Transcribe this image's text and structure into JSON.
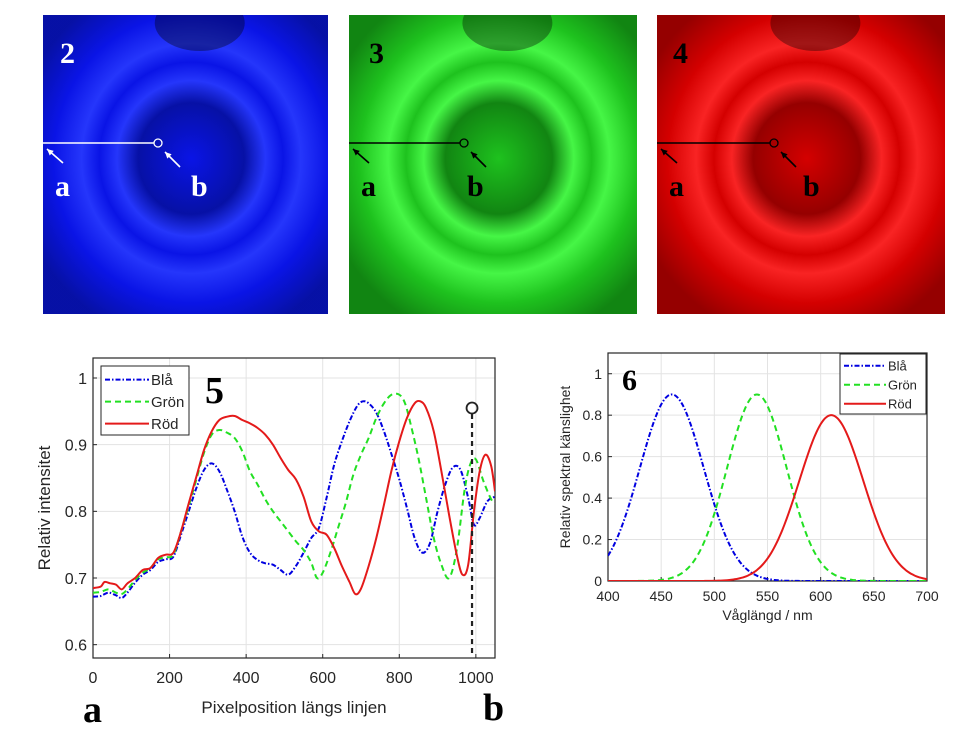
{
  "images": [
    {
      "label": "2",
      "channel": "blue",
      "color": "#0a14e6",
      "text_color": "#ffffff",
      "a_label": "a",
      "b_label": "b"
    },
    {
      "label": "3",
      "channel": "green",
      "color": "#1ec21e",
      "text_color": "#000000",
      "a_label": "a",
      "b_label": "b"
    },
    {
      "label": "4",
      "channel": "red",
      "color": "#d40000",
      "text_color": "#000000",
      "a_label": "a",
      "b_label": "b"
    }
  ],
  "bottom_labels": {
    "a": "a",
    "b": "b"
  },
  "chart_data": [
    {
      "id": "chart5",
      "panel_label": "5",
      "type": "line",
      "title": "",
      "xlabel": "Pixelposition längs linjen",
      "ylabel": "Relativ intensitet",
      "xlim": [
        0,
        1050
      ],
      "ylim": [
        0.58,
        1.03
      ],
      "xticks": [
        0,
        200,
        400,
        600,
        800,
        1000
      ],
      "yticks": [
        0.6,
        0.7,
        0.8,
        0.9,
        1
      ],
      "ytick_labels": [
        "0.6",
        "0.7",
        "0.8",
        "0.9",
        "1"
      ],
      "grid": true,
      "legend_position": "top-left",
      "marker": {
        "x": 990,
        "y_top": 0.955,
        "y_bottom": 0.585,
        "style": "dashed",
        "label": "b-marker"
      },
      "series": [
        {
          "name": "Blå",
          "color": "#0000e0",
          "dash": "dashdot",
          "x": [
            0,
            20,
            40,
            60,
            75,
            90,
            110,
            130,
            150,
            170,
            190,
            210,
            230,
            250,
            270,
            290,
            310,
            330,
            350,
            370,
            390,
            410,
            430,
            450,
            470,
            490,
            510,
            530,
            550,
            570,
            590,
            610,
            630,
            650,
            670,
            690,
            705,
            720,
            740,
            760,
            780,
            800,
            820,
            840,
            860,
            880,
            900,
            920,
            940,
            960,
            980,
            995,
            1010,
            1030,
            1050
          ],
          "y": [
            0.672,
            0.673,
            0.678,
            0.674,
            0.67,
            0.678,
            0.693,
            0.705,
            0.712,
            0.724,
            0.728,
            0.732,
            0.765,
            0.8,
            0.835,
            0.862,
            0.872,
            0.86,
            0.832,
            0.8,
            0.762,
            0.738,
            0.727,
            0.722,
            0.72,
            0.712,
            0.705,
            0.718,
            0.738,
            0.76,
            0.775,
            0.82,
            0.87,
            0.905,
            0.935,
            0.958,
            0.965,
            0.962,
            0.948,
            0.92,
            0.885,
            0.848,
            0.805,
            0.76,
            0.738,
            0.752,
            0.8,
            0.84,
            0.866,
            0.862,
            0.82,
            0.78,
            0.79,
            0.815,
            0.822
          ]
        },
        {
          "name": "Grön",
          "color": "#22e022",
          "dash": "dashed",
          "x": [
            0,
            20,
            40,
            60,
            75,
            90,
            110,
            130,
            150,
            170,
            190,
            210,
            230,
            250,
            270,
            290,
            310,
            330,
            350,
            370,
            390,
            410,
            430,
            450,
            470,
            490,
            510,
            530,
            550,
            570,
            585,
            600,
            620,
            640,
            660,
            680,
            700,
            720,
            740,
            760,
            780,
            800,
            815,
            830,
            850,
            870,
            890,
            910,
            930,
            950,
            970,
            985,
            1000,
            1020,
            1040,
            1050
          ],
          "y": [
            0.678,
            0.679,
            0.683,
            0.678,
            0.676,
            0.683,
            0.697,
            0.708,
            0.715,
            0.728,
            0.731,
            0.735,
            0.77,
            0.808,
            0.848,
            0.888,
            0.915,
            0.922,
            0.918,
            0.91,
            0.89,
            0.86,
            0.84,
            0.818,
            0.8,
            0.785,
            0.77,
            0.755,
            0.742,
            0.723,
            0.7,
            0.708,
            0.738,
            0.775,
            0.812,
            0.855,
            0.885,
            0.91,
            0.94,
            0.962,
            0.975,
            0.975,
            0.962,
            0.93,
            0.88,
            0.82,
            0.76,
            0.72,
            0.7,
            0.742,
            0.83,
            0.87,
            0.878,
            0.845,
            0.818,
            0.812
          ]
        },
        {
          "name": "Röd",
          "color": "#e41a1a",
          "dash": "solid",
          "x": [
            0,
            20,
            30,
            45,
            60,
            75,
            90,
            110,
            130,
            150,
            170,
            190,
            210,
            230,
            250,
            270,
            290,
            310,
            330,
            350,
            370,
            390,
            410,
            430,
            450,
            470,
            490,
            510,
            530,
            550,
            570,
            590,
            610,
            630,
            650,
            670,
            685,
            700,
            720,
            740,
            760,
            780,
            800,
            820,
            840,
            855,
            870,
            890,
            910,
            930,
            950,
            965,
            980,
            995,
            1010,
            1025,
            1040,
            1050
          ],
          "y": [
            0.685,
            0.687,
            0.694,
            0.692,
            0.69,
            0.683,
            0.692,
            0.7,
            0.712,
            0.715,
            0.73,
            0.735,
            0.738,
            0.77,
            0.812,
            0.852,
            0.892,
            0.92,
            0.937,
            0.942,
            0.943,
            0.937,
            0.932,
            0.925,
            0.915,
            0.9,
            0.88,
            0.862,
            0.848,
            0.822,
            0.785,
            0.77,
            0.765,
            0.745,
            0.718,
            0.694,
            0.676,
            0.684,
            0.718,
            0.76,
            0.81,
            0.862,
            0.905,
            0.94,
            0.962,
            0.965,
            0.955,
            0.92,
            0.86,
            0.795,
            0.735,
            0.705,
            0.72,
            0.8,
            0.86,
            0.885,
            0.868,
            0.83
          ]
        }
      ]
    },
    {
      "id": "chart6",
      "panel_label": "6",
      "type": "line",
      "title": "",
      "xlabel": "Våglängd / nm",
      "ylabel": "Relativ spektral känslighet",
      "xlim": [
        400,
        700
      ],
      "ylim": [
        0,
        1.1
      ],
      "xticks": [
        400,
        450,
        500,
        550,
        600,
        650,
        700
      ],
      "yticks": [
        0,
        0.2,
        0.4,
        0.6,
        0.8,
        1
      ],
      "ytick_labels": [
        "0",
        "0.2",
        "0.4",
        "0.6",
        "0.8",
        "1"
      ],
      "grid": true,
      "legend_position": "top-right",
      "series": [
        {
          "name": "Blå",
          "color": "#0000e0",
          "dash": "dashdot",
          "peak_nm": 460,
          "peak_value": 0.9,
          "sigma_nm": 30
        },
        {
          "name": "Grön",
          "color": "#22e022",
          "dash": "dashed",
          "peak_nm": 540,
          "peak_value": 0.9,
          "sigma_nm": 28
        },
        {
          "name": "Röd",
          "color": "#e41a1a",
          "dash": "solid",
          "peak_nm": 610,
          "peak_value": 0.8,
          "sigma_nm": 30
        }
      ]
    }
  ]
}
